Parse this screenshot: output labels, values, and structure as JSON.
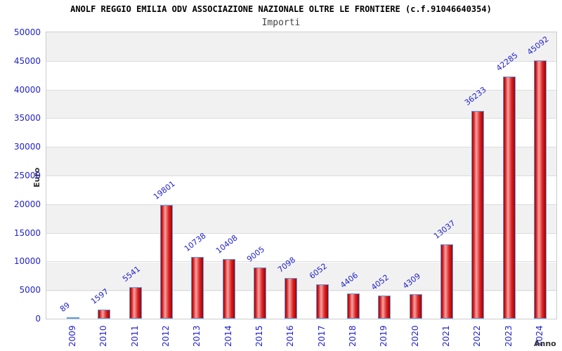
{
  "chart_data": {
    "type": "bar",
    "title": "ANOLF REGGIO EMILIA ODV ASSOCIAZIONE NAZIONALE OLTRE LE FRONTIERE (c.f.91046640354)",
    "subtitle": "Importi",
    "xlabel": "Anno",
    "ylabel": "Euro",
    "categories": [
      "2009",
      "2010",
      "2011",
      "2012",
      "2013",
      "2014",
      "2015",
      "2016",
      "2017",
      "2018",
      "2019",
      "2020",
      "2021",
      "2022",
      "2023",
      "2024"
    ],
    "values": [
      89,
      1597,
      5541,
      19801,
      10738,
      10408,
      9005,
      7098,
      6052,
      4406,
      4052,
      4309,
      13037,
      36233,
      42285,
      45092
    ],
    "ylim": [
      0,
      50000
    ],
    "ytick_step": 5000,
    "yticks": [
      0,
      5000,
      10000,
      15000,
      20000,
      25000,
      30000,
      35000,
      40000,
      45000,
      50000
    ],
    "grid": "horizontal-bands",
    "legend": null
  },
  "colors": {
    "label_blue": "#2222cc",
    "bar_border": "#5f9ae0",
    "bar_red_dark": "#a00000",
    "bar_red_mid": "#dd2222",
    "bar_red_light": "#f2a5a5",
    "band_gray": "#f1f1f1",
    "grid_line": "#dcdcdc",
    "plot_border": "#cccccc",
    "title_color": "#000000",
    "subtitle_color": "#444444",
    "axis_title_color": "#333333",
    "background": "#ffffff"
  }
}
